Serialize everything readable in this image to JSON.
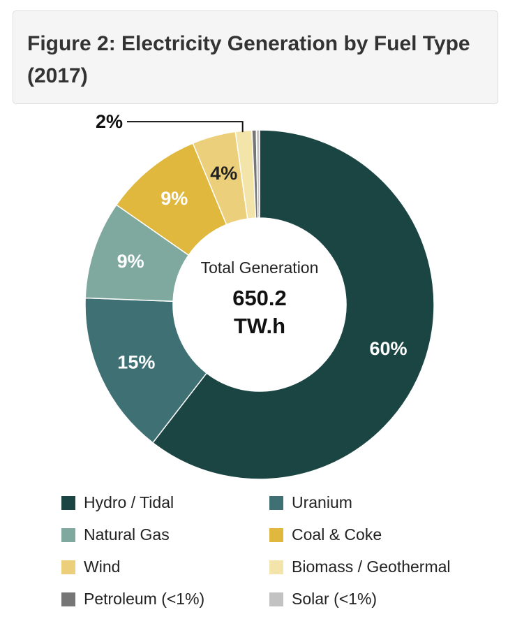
{
  "title": "Figure 2: Electricity Generation by Fuel Type (2017)",
  "chart_data": {
    "type": "pie",
    "variant": "donut",
    "center_label": "Total Generation",
    "center_value_line1": "650.2",
    "center_value_line2": "TW.h",
    "unit": "TW.h",
    "slices": [
      {
        "label": "Hydro / Tidal",
        "value": 60,
        "data_label": "60%",
        "color": "#1b4543",
        "label_color": "#ffffff"
      },
      {
        "label": "Uranium",
        "value": 15,
        "data_label": "15%",
        "color": "#3f7174",
        "label_color": "#ffffff"
      },
      {
        "label": "Natural Gas",
        "value": 9,
        "data_label": "9%",
        "color": "#7fa89e",
        "label_color": "#ffffff"
      },
      {
        "label": "Coal & Coke",
        "value": 9,
        "data_label": "9%",
        "color": "#e0b83e",
        "label_color": "#ffffff"
      },
      {
        "label": "Wind",
        "value": 4,
        "data_label": "4%",
        "color": "#ebcf7a",
        "label_color": "#222222"
      },
      {
        "label": "Biomass / Geothermal",
        "value": 1.5,
        "data_label": "2%",
        "color": "#f3e4aa",
        "label_color": "#222222"
      },
      {
        "label": "Petroleum (<1%)",
        "value": 0.4,
        "data_label": "",
        "color": "#767676",
        "label_color": "#222222"
      },
      {
        "label": "Solar (<1%)",
        "value": 0.3,
        "data_label": "",
        "color": "#c2c2c2",
        "label_color": "#222222"
      }
    ],
    "legend_order": [
      0,
      1,
      2,
      3,
      4,
      5,
      6,
      7
    ],
    "legend_position": "bottom"
  }
}
